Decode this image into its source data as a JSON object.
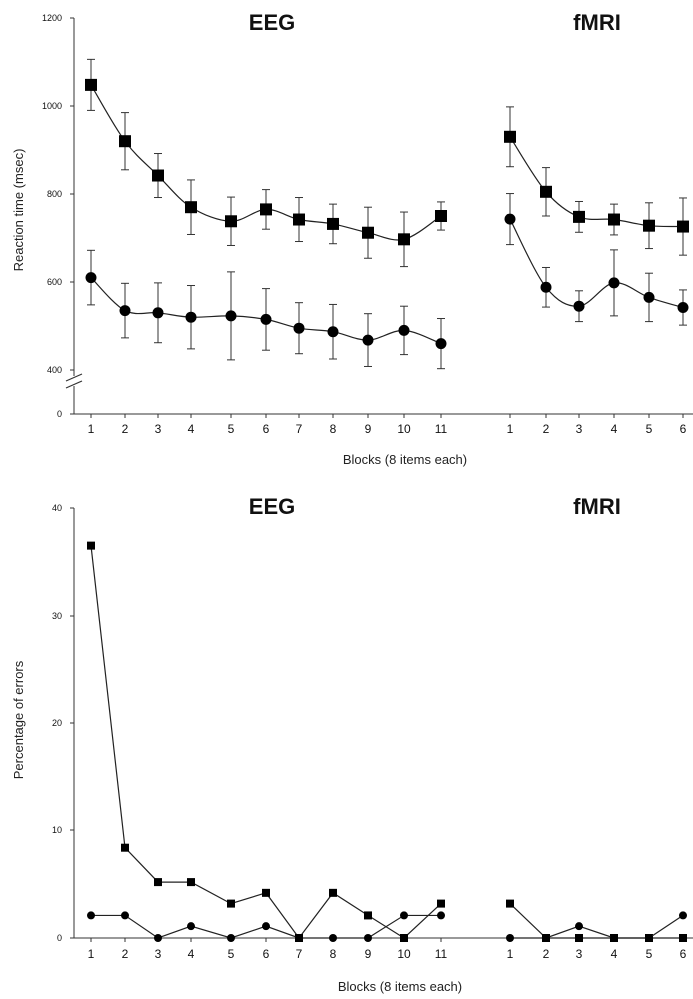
{
  "chart_data": [
    {
      "type": "line",
      "titles": [
        "EEG",
        "fMRI"
      ],
      "ylabel": "Reaction time (msec)",
      "xlabel": "Blocks (8 items each)",
      "yticks": [
        "0",
        "400",
        "600",
        "800",
        "1000",
        "1200"
      ],
      "ylim": [
        400,
        1200
      ],
      "axis_break": true,
      "panels": [
        {
          "name": "EEG",
          "x": [
            "1",
            "2",
            "3",
            "4",
            "5",
            "6",
            "7",
            "8",
            "9",
            "10",
            "11"
          ],
          "series": [
            {
              "marker": "square",
              "values": [
                1048,
                920,
                842,
                770,
                738,
                765,
                742,
                732,
                712,
                697,
                750
              ],
              "errors": [
                58,
                65,
                50,
                62,
                55,
                45,
                50,
                45,
                58,
                62,
                32
              ]
            },
            {
              "marker": "circle",
              "values": [
                610,
                535,
                530,
                520,
                523,
                515,
                495,
                487,
                468,
                490,
                460
              ],
              "errors": [
                62,
                62,
                68,
                72,
                100,
                70,
                58,
                62,
                60,
                55,
                57
              ]
            }
          ]
        },
        {
          "name": "fMRI",
          "x": [
            "1",
            "2",
            "3",
            "4",
            "5",
            "6"
          ],
          "series": [
            {
              "marker": "square",
              "values": [
                930,
                805,
                748,
                742,
                728,
                726
              ],
              "errors": [
                68,
                55,
                35,
                35,
                52,
                65
              ]
            },
            {
              "marker": "circle",
              "values": [
                743,
                588,
                545,
                598,
                565,
                542
              ],
              "errors": [
                58,
                45,
                35,
                75,
                55,
                40
              ]
            }
          ]
        }
      ]
    },
    {
      "type": "line",
      "titles": [
        "EEG",
        "fMRI"
      ],
      "ylabel": "Percentage of errors",
      "xlabel": "Blocks (8 items each)",
      "yticks": [
        "0",
        "10",
        "20",
        "30",
        "40"
      ],
      "ylim": [
        0,
        40
      ],
      "panels": [
        {
          "name": "EEG",
          "x": [
            "1",
            "2",
            "3",
            "4",
            "5",
            "6",
            "7",
            "8",
            "9",
            "10",
            "11"
          ],
          "series": [
            {
              "marker": "square",
              "values": [
                36.5,
                8.4,
                5.2,
                5.2,
                3.2,
                4.2,
                0,
                4.2,
                2.1,
                0,
                3.2
              ]
            },
            {
              "marker": "circle",
              "values": [
                2.1,
                2.1,
                0,
                1.1,
                0,
                1.1,
                0,
                0,
                0,
                2.1,
                2.1
              ]
            }
          ]
        },
        {
          "name": "fMRI",
          "x": [
            "1",
            "2",
            "3",
            "4",
            "5",
            "6"
          ],
          "series": [
            {
              "marker": "square",
              "values": [
                3.2,
                0,
                0,
                0,
                0,
                0
              ]
            },
            {
              "marker": "circle",
              "values": [
                0,
                0,
                1.1,
                0,
                0,
                2.1
              ]
            }
          ]
        }
      ]
    }
  ]
}
